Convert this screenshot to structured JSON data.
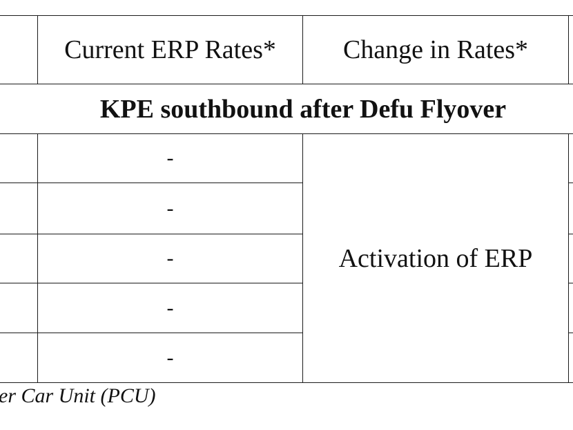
{
  "table": {
    "headers": {
      "current_rates": "Current ERP Rates*",
      "change_in_rates": "Change in Rates*"
    },
    "section_title": "KPE southbound after Defu Flyover",
    "rows": [
      {
        "current_rate": "-"
      },
      {
        "current_rate": "-"
      },
      {
        "current_rate": "-"
      },
      {
        "current_rate": "-"
      },
      {
        "current_rate": "-"
      }
    ],
    "change_merged": "Activation of ERP"
  },
  "footnote": "er Car Unit (PCU)"
}
